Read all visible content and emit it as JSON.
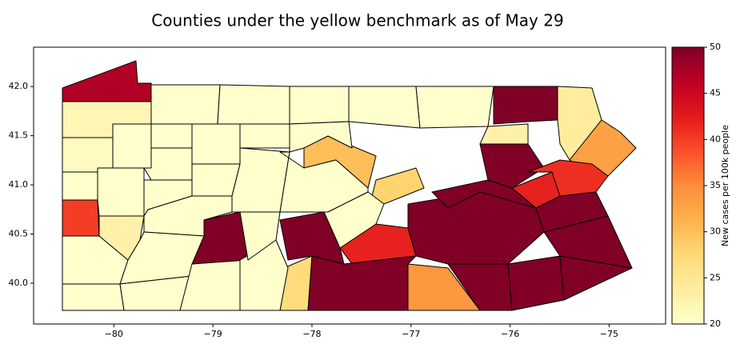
{
  "chart_data": {
    "type": "choropleth",
    "title": "Counties under the yellow benchmark as of May 29",
    "colorbar_label": "New cases per 100k people",
    "xlim": [
      -80.81,
      -74.43
    ],
    "ylim": [
      39.585,
      42.4
    ],
    "xticks": [
      {
        "value": -80,
        "label": "−80"
      },
      {
        "value": -79,
        "label": "−79"
      },
      {
        "value": -78,
        "label": "−78"
      },
      {
        "value": -77,
        "label": "−77"
      },
      {
        "value": -76,
        "label": "−76"
      },
      {
        "value": -75,
        "label": "−75"
      }
    ],
    "yticks": [
      {
        "value": 40,
        "label": "40.0"
      },
      40.5,
      {
        "value": 41,
        "label": "41.0"
      },
      41.5,
      {
        "value": 42,
        "label": "42.0"
      }
    ],
    "clim": [
      20,
      50
    ],
    "cticks": [
      20,
      25,
      30,
      35,
      40,
      45,
      50
    ],
    "colormap": [
      "#ffffcc",
      "#ffeda0",
      "#fed976",
      "#feb24c",
      "#fd8d3c",
      "#fc4e2a",
      "#e31a1c",
      "#bd0026",
      "#800026"
    ],
    "values": [
      47,
      20,
      20,
      20,
      20,
      20,
      50,
      24,
      33,
      22,
      21,
      20,
      40,
      20,
      20,
      23,
      20,
      20,
      20,
      20,
      20,
      20,
      20,
      20,
      20,
      20,
      20,
      20,
      20,
      27,
      50,
      20,
      30,
      20,
      20,
      28,
      20,
      42,
      50,
      34,
      50,
      50,
      50,
      50,
      50,
      42,
      50,
      50,
      20,
      50,
      50,
      23,
      41
    ]
  }
}
